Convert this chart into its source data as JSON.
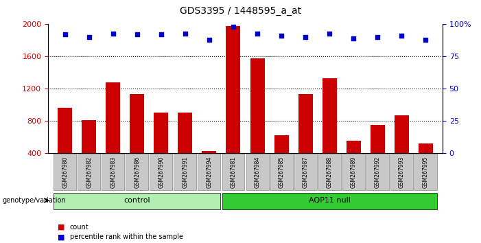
{
  "title": "GDS3395 / 1448595_a_at",
  "samples": [
    "GSM267980",
    "GSM267982",
    "GSM267983",
    "GSM267986",
    "GSM267990",
    "GSM267991",
    "GSM267994",
    "GSM267981",
    "GSM267984",
    "GSM267985",
    "GSM267987",
    "GSM267988",
    "GSM267989",
    "GSM267992",
    "GSM267993",
    "GSM267995"
  ],
  "counts": [
    960,
    810,
    1280,
    1130,
    900,
    900,
    430,
    1980,
    1580,
    620,
    1130,
    1330,
    550,
    750,
    870,
    520
  ],
  "percentile_ranks": [
    92,
    90,
    93,
    92,
    92,
    93,
    88,
    98,
    93,
    91,
    90,
    93,
    89,
    90,
    91,
    88
  ],
  "group_labels": [
    "control",
    "AQP11 null"
  ],
  "group_sizes": [
    7,
    9
  ],
  "group_colors": [
    "#b2f0b2",
    "#33cc33"
  ],
  "bar_color": "#CC0000",
  "dot_color": "#0000CC",
  "ylim_left": [
    400,
    2000
  ],
  "ylim_right": [
    0,
    100
  ],
  "yticks_left": [
    400,
    800,
    1200,
    1600,
    2000
  ],
  "yticks_right": [
    0,
    25,
    50,
    75,
    100
  ],
  "grid_values": [
    800,
    1200,
    1600
  ],
  "tick_label_bg": "#c8c8c8",
  "legend_count_label": "count",
  "legend_pct_label": "percentile rank within the sample",
  "genotype_label": "genotype/variation"
}
